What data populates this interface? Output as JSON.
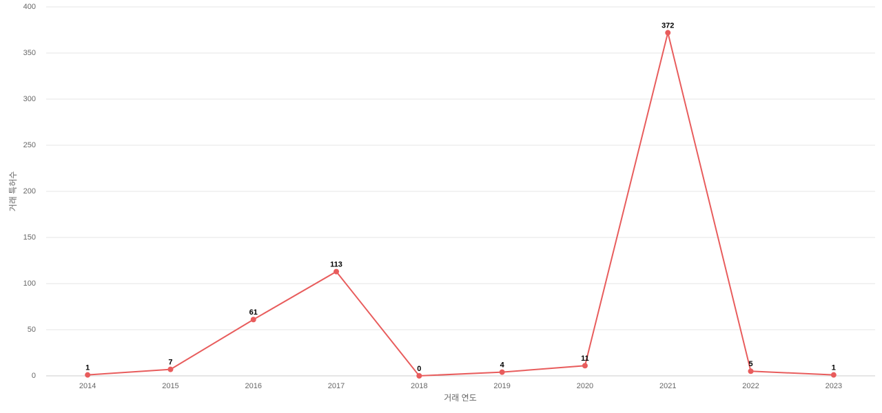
{
  "chart_data": {
    "type": "line",
    "x_label": "거래 연도",
    "y_label": "거래 특허수",
    "categories": [
      "2014",
      "2015",
      "2016",
      "2017",
      "2018",
      "2019",
      "2020",
      "2021",
      "2022",
      "2023"
    ],
    "series": [
      {
        "name": "거래 특허수",
        "color": "#e85c5c",
        "values": [
          1,
          7,
          61,
          113,
          0,
          4,
          11,
          372,
          5,
          1
        ]
      }
    ],
    "ylim": [
      0,
      400
    ],
    "yticks": [
      0,
      50,
      100,
      150,
      200,
      250,
      300,
      350,
      400
    ],
    "grid": true
  }
}
